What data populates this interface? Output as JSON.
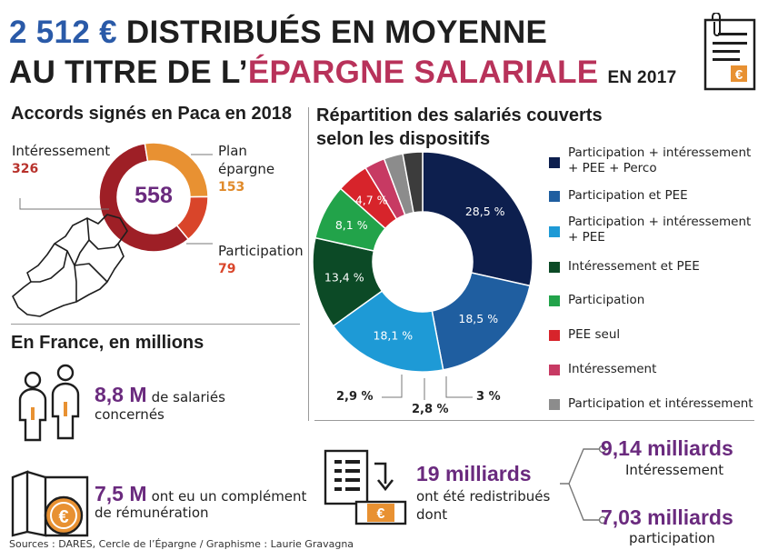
{
  "header": {
    "amount": "2 512 €",
    "line1_rest": "DISTRIBUÉS EN MOYENNE",
    "line2_a": "AU TITRE DE L’",
    "line2_b": "ÉPARGNE SALARIALE",
    "year": "EN 2017"
  },
  "paca": {
    "title": "Accords signés en Paca en 2018",
    "total": "558",
    "items": [
      {
        "label": "Intéressement",
        "value": "326",
        "color": "#9e1f26"
      },
      {
        "label_l1": "Plan",
        "label_l2": "épargne",
        "value": "153",
        "color": "#e89132"
      },
      {
        "label": "Participation",
        "value": "79",
        "color": "#d9452a"
      }
    ]
  },
  "chart_data": [
    {
      "type": "pie",
      "title": "Accords signés en Paca en 2018",
      "center_label": "558",
      "categories": [
        "Intéressement",
        "Plan épargne",
        "Participation"
      ],
      "values": [
        326,
        153,
        79
      ],
      "colors": [
        "#9e1f26",
        "#e89132",
        "#d9452a"
      ]
    },
    {
      "type": "pie",
      "title": "Répartition des salariés couverts selon les dispositifs",
      "categories": [
        "Participation + intéressement + PEE + Perco",
        "Participation et PEE",
        "Participation + intéressement + PEE",
        "Intéressement et PEE",
        "Participation",
        "PEE seul",
        "Intéressement",
        "Participation et intéressement",
        ""
      ],
      "values": [
        28.5,
        18.5,
        18.1,
        13.4,
        8.1,
        4.7,
        3,
        2.8,
        2.9
      ],
      "labels": [
        "28,5 %",
        "18,5 %",
        "18,1 %",
        "13,4 %",
        "8,1 %",
        "4,7 %",
        "3 %",
        "2,8 %",
        "2,9 %"
      ],
      "colors": [
        "#0d1f4e",
        "#1f5ea0",
        "#1e9ad6",
        "#0c4a26",
        "#22a34a",
        "#d7242b",
        "#c73a63",
        "#8c8c8c",
        "#3c3c3c"
      ],
      "legend_position": "right"
    }
  ],
  "repartition": {
    "title_l1": "Répartition des salariés couverts",
    "title_l2": "selon les dispositifs",
    "legend": [
      {
        "l1": "Participation + intéressement",
        "l2": "+ PEE + Perco",
        "color": "#0d1f4e"
      },
      {
        "l1": "Participation et PEE",
        "color": "#1f5ea0"
      },
      {
        "l1": "Participation + intéressement",
        "l2": "+ PEE",
        "color": "#1e9ad6"
      },
      {
        "l1": "Intéressement et PEE",
        "color": "#0c4a26"
      },
      {
        "l1": "Participation",
        "color": "#22a34a"
      },
      {
        "l1": "PEE seul",
        "color": "#d7242b"
      },
      {
        "l1": "Intéressement",
        "color": "#c73a63"
      },
      {
        "l1": "Participation et intéressement",
        "color": "#8c8c8c"
      }
    ]
  },
  "france": {
    "title": "En France, en millions",
    "salaries_big": "8,8 M",
    "salaries_rest": "de salariés",
    "salaries_l2": "concernés",
    "complement_big": "7,5 M",
    "complement_rest": "ont eu un complément",
    "complement_l2": "de rémunération",
    "redistrib_big": "19 milliards",
    "redistrib_l1": "ont été redistribués",
    "redistrib_l2": "dont",
    "int_big": "9,14 milliards",
    "int_label": "Intéressement",
    "part_big": "7,03 milliards",
    "part_label": "participation"
  },
  "source": "Sources : DARES, Cercle de l’Épargne / Graphisme : Laurie Gravagna",
  "colors": {
    "accent_blue": "#2a5aa8",
    "accent_pink": "#b8325a",
    "figure_purple": "#6a2a7e",
    "euro_orange": "#e89132"
  }
}
